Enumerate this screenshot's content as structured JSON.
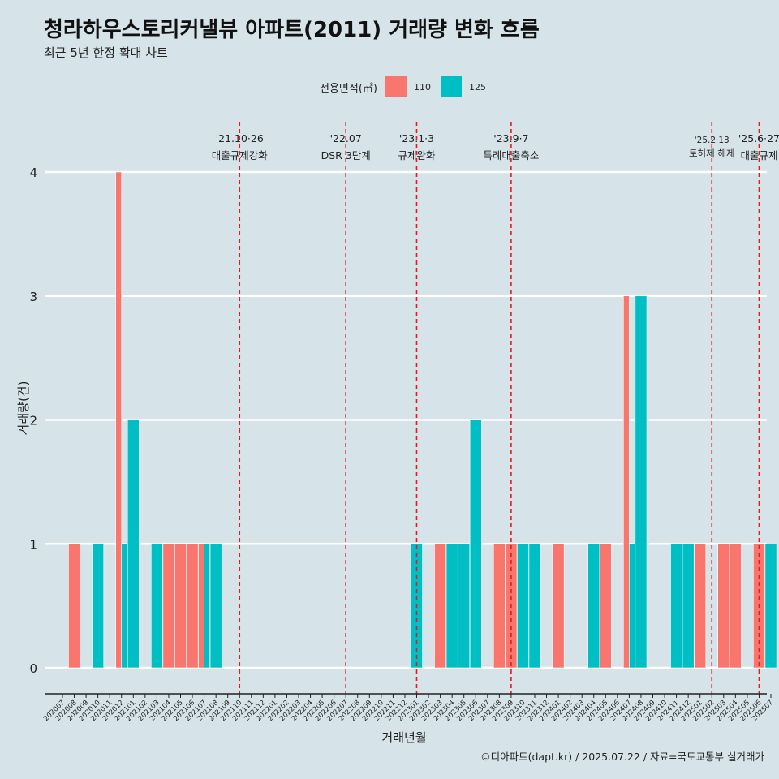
{
  "title": "청라하우스토리커낼뷰 아파트(2011) 거래량 변화 흐름",
  "subtitle": "최근 5년 한정 확대 차트",
  "caption": "©디아파트(dapt.kr) / 2025.07.22 / 자료=국토교통부 실거래가",
  "colors": {
    "background": "#d6e4ea",
    "s110": "#f8766d",
    "s125": "#00bfc4",
    "event_line": "#e41a1c"
  },
  "chart_data": {
    "type": "bar",
    "xlabel": "거래년월",
    "ylabel": "거래량(건)",
    "ylim": [
      0,
      4
    ],
    "yticks": [
      0,
      1,
      2,
      3,
      4
    ],
    "grid": "horizontal major",
    "legend_position": "top",
    "legend_title": "전용면적(㎡)",
    "categories": [
      "202007",
      "202008",
      "202009",
      "202010",
      "202011",
      "202012",
      "202101",
      "202102",
      "202103",
      "202104",
      "202105",
      "202106",
      "202107",
      "202108",
      "202109",
      "202110",
      "202111",
      "202112",
      "202201",
      "202202",
      "202203",
      "202204",
      "202205",
      "202206",
      "202207",
      "202208",
      "202209",
      "202210",
      "202211",
      "202212",
      "202301",
      "202302",
      "202303",
      "202304",
      "202305",
      "202306",
      "202307",
      "202308",
      "202309",
      "202310",
      "202311",
      "202312",
      "202401",
      "202402",
      "202403",
      "202404",
      "202405",
      "202406",
      "202407",
      "202408",
      "202409",
      "202410",
      "202411",
      "202412",
      "202501",
      "202502",
      "202503",
      "202504",
      "202505",
      "202506",
      "202507"
    ],
    "series": [
      {
        "name": "110",
        "color": "#f8766d",
        "values": [
          0,
          1,
          0,
          0,
          0,
          4,
          0,
          0,
          0,
          1,
          1,
          1,
          1,
          0,
          0,
          0,
          0,
          0,
          0,
          0,
          0,
          0,
          0,
          0,
          0,
          0,
          0,
          0,
          0,
          0,
          0,
          0,
          1,
          0,
          0,
          0,
          0,
          1,
          1,
          0,
          0,
          0,
          1,
          0,
          0,
          0,
          1,
          0,
          3,
          0,
          0,
          0,
          0,
          0,
          1,
          0,
          1,
          1,
          0,
          1,
          0
        ]
      },
      {
        "name": "125",
        "color": "#00bfc4",
        "values": [
          0,
          0,
          0,
          1,
          0,
          1,
          2,
          0,
          1,
          0,
          0,
          0,
          1,
          1,
          0,
          0,
          0,
          0,
          0,
          0,
          0,
          0,
          0,
          0,
          0,
          0,
          0,
          0,
          0,
          0,
          1,
          0,
          0,
          1,
          1,
          2,
          0,
          0,
          0,
          1,
          1,
          0,
          0,
          0,
          0,
          1,
          0,
          0,
          1,
          3,
          0,
          0,
          1,
          1,
          0,
          0,
          0,
          0,
          0,
          0,
          1
        ]
      }
    ],
    "events": [
      {
        "category": "202110",
        "date": "'21.10·26",
        "label": "대출규제강화"
      },
      {
        "category": "202207",
        "date": "'22.07",
        "label": "DSR 3단계"
      },
      {
        "category": "202301",
        "date": "'23.1·3",
        "label": "규제완화"
      },
      {
        "category": "202309",
        "date": "'23.9·7",
        "label": "특례대출축소"
      },
      {
        "category": "202502",
        "date": "'25.2·13",
        "label": "토허제 해제"
      },
      {
        "category": "202506",
        "date": "'25.6·27",
        "label": "대출규제"
      }
    ]
  }
}
